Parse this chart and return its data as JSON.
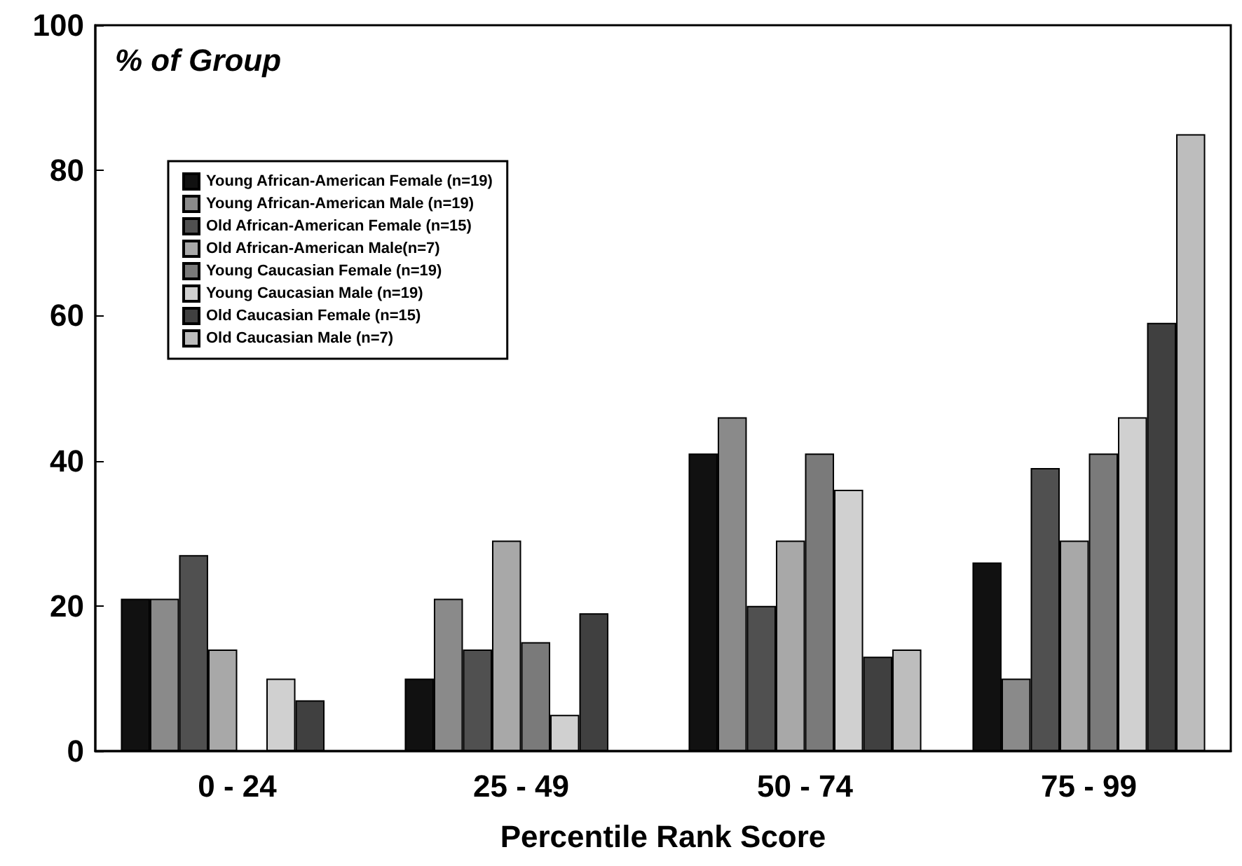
{
  "chart_data": {
    "type": "bar",
    "ylabel": "% of Group",
    "xlabel": "Percentile Rank Score",
    "categories": [
      "0 - 24",
      "25 - 49",
      "50 - 74",
      "75 - 99"
    ],
    "ylim": [
      0,
      100
    ],
    "yticks": [
      0,
      20,
      40,
      60,
      80,
      100
    ],
    "grid": false,
    "legend": "top left",
    "series": [
      {
        "name": "Young African-American Female (n=19)",
        "color": "#111111",
        "values": [
          21,
          10,
          41,
          26
        ]
      },
      {
        "name": "Young African-American Male (n=19)",
        "color": "#8a8a8a",
        "values": [
          21,
          21,
          46,
          10
        ]
      },
      {
        "name": "Old African-American Female (n=15)",
        "color": "#505050",
        "values": [
          27,
          14,
          20,
          39
        ]
      },
      {
        "name": "Old African-American Male(n=7)",
        "color": "#a8a8a8",
        "values": [
          14,
          29,
          29,
          29
        ]
      },
      {
        "name": "Young Caucasian Female (n=19)",
        "color": "#7a7a7a",
        "values": [
          0,
          15,
          41,
          41
        ]
      },
      {
        "name": "Young Caucasian Male (n=19)",
        "color": "#d0d0d0",
        "values": [
          10,
          5,
          36,
          46
        ]
      },
      {
        "name": "Old Caucasian Female (n=15)",
        "color": "#404040",
        "values": [
          7,
          19,
          13,
          59
        ]
      },
      {
        "name": "Old Caucasian Male (n=7)",
        "color": "#bdbdbd",
        "values": [
          0,
          0,
          14,
          85
        ]
      }
    ]
  }
}
